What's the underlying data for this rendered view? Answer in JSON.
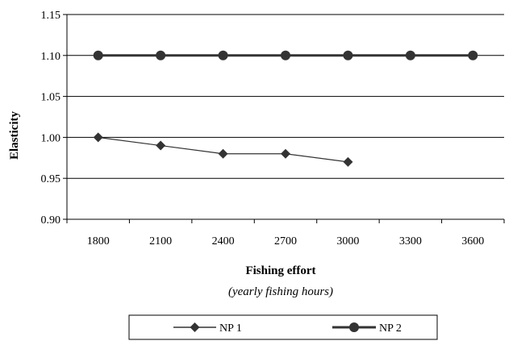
{
  "chart_data": {
    "type": "line",
    "xlabel": "Fishing effort",
    "xlabel_sub": "(yearly fishing hours)",
    "ylabel": "Elasticity",
    "categories": [
      "1800",
      "2100",
      "2400",
      "2700",
      "3000",
      "3300",
      "3600"
    ],
    "ylim": [
      0.9,
      1.15
    ],
    "yticks": [
      "1.15",
      "1.10",
      "1.05",
      "1.00",
      "0.95",
      "0.90"
    ],
    "grid": "horizontal",
    "legend_position": "bottom",
    "series": [
      {
        "name": "NP 1",
        "marker": "diamond",
        "values": [
          1.0,
          0.99,
          0.98,
          0.98,
          0.97,
          null,
          null
        ]
      },
      {
        "name": "NP 2",
        "marker": "circle",
        "values": [
          1.1,
          1.1,
          1.1,
          1.1,
          1.1,
          1.1,
          1.1
        ]
      }
    ]
  }
}
